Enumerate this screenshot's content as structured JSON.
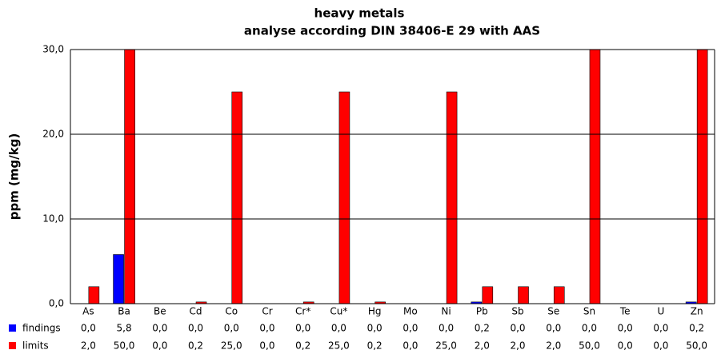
{
  "chart_data": {
    "type": "bar",
    "title": "heavy metals",
    "subtitle": "analyse according DIN 38406-E 29 with AAS",
    "y_label": "ppm (mg/kg)",
    "categories": [
      "As",
      "Ba",
      "Be",
      "Cd",
      "Co",
      "Cr",
      "Cr*",
      "Cu*",
      "Hg",
      "Mo",
      "Ni",
      "Pb",
      "Sb",
      "Se",
      "Sn",
      "Te",
      "U",
      "Zn"
    ],
    "series": [
      {
        "name": "findings",
        "color": "#0000ff",
        "values": [
          0,
          5.8,
          0,
          0,
          0,
          0,
          0,
          0,
          0,
          0,
          0,
          0.2,
          0,
          0,
          0,
          0,
          0,
          0.2
        ],
        "value_labels": [
          "0,0",
          "5,8",
          "0,0",
          "0,0",
          "0,0",
          "0,0",
          "0,0",
          "0,0",
          "0,0",
          "0,0",
          "0,0",
          "0,2",
          "0,0",
          "0,0",
          "0,0",
          "0,0",
          "0,0",
          "0,2"
        ]
      },
      {
        "name": "limits",
        "color": "#ff0000",
        "values": [
          2,
          50,
          0,
          0.2,
          25,
          0,
          0.2,
          25,
          0.2,
          0,
          25,
          2,
          2,
          2,
          50,
          0,
          0,
          50
        ],
        "value_labels": [
          "2,0",
          "50,0",
          "0,0",
          "0,2",
          "25,0",
          "0,0",
          "0,2",
          "25,0",
          "0,2",
          "0,0",
          "25,0",
          "2,0",
          "2,0",
          "2,0",
          "50,0",
          "0,0",
          "0,0",
          "50,0"
        ]
      }
    ],
    "ylim": [
      0,
      30
    ],
    "yticks": [
      {
        "value": 0,
        "label": "0,0"
      },
      {
        "value": 10,
        "label": "10,0"
      },
      {
        "value": 20,
        "label": "20,0"
      },
      {
        "value": 30,
        "label": "30,0"
      }
    ],
    "grid": true
  }
}
